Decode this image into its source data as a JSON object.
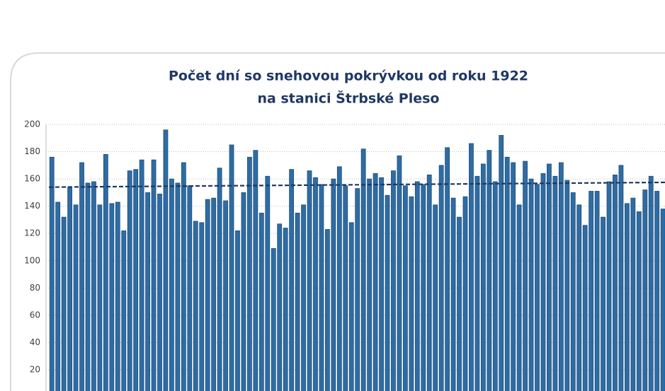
{
  "chart_data": {
    "type": "bar",
    "title": [
      "Počet dní so snehovou pokrývkou od roku 1922",
      "na stanici Štrbské Pleso"
    ],
    "values": [
      176,
      143,
      132,
      154,
      141,
      172,
      157,
      158,
      141,
      178,
      142,
      143,
      122,
      166,
      167,
      174,
      150,
      174,
      149,
      196,
      160,
      157,
      172,
      155,
      129,
      128,
      145,
      146,
      168,
      144,
      185,
      122,
      150,
      176,
      181,
      135,
      162,
      109,
      127,
      124,
      167,
      135,
      141,
      166,
      161,
      156,
      123,
      160,
      169,
      155,
      128,
      153,
      182,
      160,
      164,
      161,
      148,
      166,
      177,
      155,
      147,
      158,
      156,
      163,
      141,
      170,
      183,
      146,
      132,
      147,
      186,
      162,
      171,
      181,
      158,
      192,
      176,
      172,
      141,
      173,
      160,
      156,
      164,
      171,
      162,
      172,
      159,
      150,
      141,
      126,
      151,
      151,
      132,
      158,
      163,
      170,
      142,
      146,
      136,
      152,
      162,
      151,
      138
    ],
    "color": "#2e6ca4",
    "trend": [
      154,
      157.5
    ],
    "trend_color": "#1f3864",
    "ylim": [
      0,
      200
    ],
    "yticks": [
      20,
      40,
      60,
      80,
      100,
      120,
      140,
      160,
      180,
      200
    ],
    "grid": true
  }
}
